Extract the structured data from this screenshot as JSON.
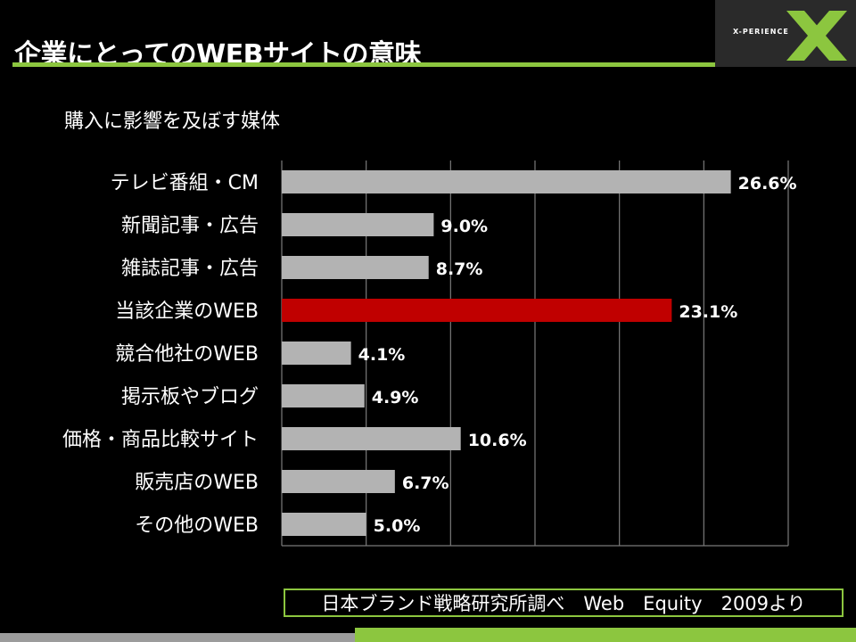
{
  "slide": {
    "title": "企業にとってのWEBサイトの意味",
    "logo_text": "X-PERIENCE",
    "source": "日本ブランド戦略研究所調べ　Web　Equity　2009より"
  },
  "colors": {
    "accent_green": "#8cc63f",
    "bar_default": "#b3b3b3",
    "bar_highlight": "#c00000",
    "logo_x": "#8cc63f"
  },
  "chart_data": {
    "type": "bar",
    "orientation": "horizontal",
    "title": "購入に影響を及ぼす媒体",
    "categories": [
      "テレビ番組・CM",
      "新聞記事・広告",
      "雑誌記事・広告",
      "当該企業のWEB",
      "競合他社のWEB",
      "掲示板やブログ",
      "価格・商品比較サイト",
      "販売店のWEB",
      "その他のWEB"
    ],
    "values": [
      26.6,
      9.0,
      8.7,
      23.1,
      4.1,
      4.9,
      10.6,
      6.7,
      5.0
    ],
    "value_labels": [
      "26.6%",
      "9.0%",
      "8.7%",
      "23.1%",
      "4.1%",
      "4.9%",
      "10.6%",
      "6.7%",
      "5.0%"
    ],
    "highlight_index": 3,
    "xlim": [
      0,
      30
    ],
    "grid": true,
    "legend": "none"
  }
}
